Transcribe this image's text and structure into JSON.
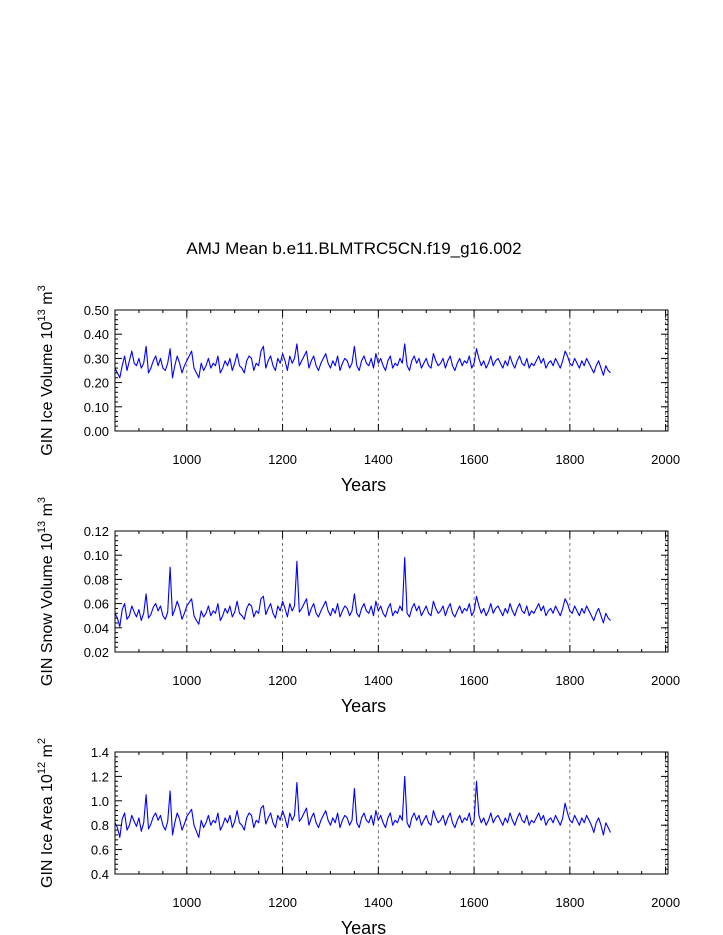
{
  "title": "AMJ Mean b.e11.BLMTRC5CN.f19_g16.002",
  "chart_data": [
    {
      "type": "line",
      "xlabel": "Years",
      "ylabel": {
        "main": "GIN Ice Volume 10",
        "exp": "13",
        "unit": " m",
        "unit_exp": "3"
      },
      "xlim": [
        850,
        2005
      ],
      "ylim": [
        0.0,
        0.5
      ],
      "xticks": [
        "1000",
        "1200",
        "1400",
        "1600",
        "1800",
        "2000"
      ],
      "yticks": [
        "0.00",
        "0.10",
        "0.20",
        "0.30",
        "0.40",
        "0.50"
      ],
      "grid_x": [
        1000,
        1200,
        1400,
        1600,
        1800,
        2000
      ],
      "series": [
        {
          "name": "GIN Ice Volume",
          "color": "#0000ff",
          "x_start": 850,
          "x_step": 5,
          "values": [
            0.26,
            0.24,
            0.22,
            0.27,
            0.31,
            0.25,
            0.29,
            0.33,
            0.28,
            0.27,
            0.3,
            0.26,
            0.28,
            0.35,
            0.24,
            0.26,
            0.29,
            0.31,
            0.27,
            0.3,
            0.26,
            0.25,
            0.28,
            0.34,
            0.22,
            0.27,
            0.31,
            0.28,
            0.24,
            0.27,
            0.29,
            0.31,
            0.33,
            0.26,
            0.24,
            0.22,
            0.28,
            0.25,
            0.27,
            0.3,
            0.26,
            0.28,
            0.27,
            0.31,
            0.24,
            0.26,
            0.29,
            0.27,
            0.3,
            0.25,
            0.28,
            0.32,
            0.27,
            0.26,
            0.24,
            0.29,
            0.31,
            0.3,
            0.25,
            0.28,
            0.27,
            0.33,
            0.35,
            0.26,
            0.29,
            0.31,
            0.27,
            0.25,
            0.3,
            0.28,
            0.32,
            0.29,
            0.25,
            0.31,
            0.28,
            0.3,
            0.36,
            0.27,
            0.29,
            0.31,
            0.33,
            0.26,
            0.29,
            0.31,
            0.27,
            0.25,
            0.28,
            0.3,
            0.32,
            0.28,
            0.26,
            0.29,
            0.27,
            0.31,
            0.25,
            0.28,
            0.3,
            0.29,
            0.26,
            0.28,
            0.35,
            0.27,
            0.25,
            0.29,
            0.31,
            0.28,
            0.27,
            0.3,
            0.26,
            0.32,
            0.28,
            0.3,
            0.27,
            0.25,
            0.29,
            0.31,
            0.26,
            0.28,
            0.27,
            0.3,
            0.28,
            0.36,
            0.27,
            0.25,
            0.29,
            0.31,
            0.28,
            0.3,
            0.26,
            0.28,
            0.3,
            0.27,
            0.26,
            0.32,
            0.29,
            0.27,
            0.28,
            0.3,
            0.26,
            0.29,
            0.31,
            0.27,
            0.25,
            0.28,
            0.3,
            0.27,
            0.29,
            0.28,
            0.31,
            0.26,
            0.28,
            0.34,
            0.3,
            0.27,
            0.29,
            0.26,
            0.28,
            0.31,
            0.27,
            0.29,
            0.3,
            0.28,
            0.26,
            0.29,
            0.27,
            0.31,
            0.28,
            0.26,
            0.29,
            0.31,
            0.28,
            0.27,
            0.3,
            0.26,
            0.28,
            0.27,
            0.29,
            0.31,
            0.28,
            0.3,
            0.26,
            0.28,
            0.29,
            0.27,
            0.3,
            0.28,
            0.26,
            0.29,
            0.33,
            0.31,
            0.28,
            0.27,
            0.3,
            0.28,
            0.26,
            0.29,
            0.27,
            0.3,
            0.28,
            0.26,
            0.24,
            0.27,
            0.29,
            0.26,
            0.23,
            0.27,
            0.25,
            0.24
          ]
        }
      ]
    },
    {
      "type": "line",
      "xlabel": "Years",
      "ylabel": {
        "main": "GIN Snow Volume 10",
        "exp": "13",
        "unit": " m",
        "unit_exp": "3"
      },
      "xlim": [
        850,
        2005
      ],
      "ylim": [
        0.02,
        0.12
      ],
      "xticks": [
        "1000",
        "1200",
        "1400",
        "1600",
        "1800",
        "2000"
      ],
      "yticks": [
        "0.02",
        "0.04",
        "0.06",
        "0.08",
        "0.10",
        "0.12"
      ],
      "grid_x": [
        1000,
        1200,
        1400,
        1600,
        1800,
        2000
      ],
      "series": [
        {
          "name": "GIN Snow Volume",
          "color": "#0000ff",
          "x_start": 850,
          "x_step": 5,
          "values": [
            0.052,
            0.048,
            0.041,
            0.055,
            0.06,
            0.047,
            0.05,
            0.058,
            0.053,
            0.049,
            0.055,
            0.046,
            0.052,
            0.068,
            0.048,
            0.051,
            0.057,
            0.06,
            0.054,
            0.058,
            0.05,
            0.047,
            0.053,
            0.09,
            0.05,
            0.055,
            0.062,
            0.056,
            0.047,
            0.052,
            0.058,
            0.061,
            0.064,
            0.05,
            0.046,
            0.043,
            0.054,
            0.049,
            0.052,
            0.058,
            0.05,
            0.054,
            0.052,
            0.06,
            0.046,
            0.05,
            0.056,
            0.052,
            0.058,
            0.049,
            0.053,
            0.062,
            0.052,
            0.05,
            0.047,
            0.056,
            0.06,
            0.058,
            0.049,
            0.054,
            0.052,
            0.064,
            0.066,
            0.051,
            0.056,
            0.06,
            0.052,
            0.048,
            0.058,
            0.054,
            0.062,
            0.056,
            0.049,
            0.06,
            0.054,
            0.058,
            0.095,
            0.053,
            0.056,
            0.06,
            0.064,
            0.05,
            0.056,
            0.06,
            0.052,
            0.049,
            0.054,
            0.058,
            0.062,
            0.054,
            0.05,
            0.056,
            0.052,
            0.06,
            0.049,
            0.054,
            0.058,
            0.056,
            0.05,
            0.054,
            0.068,
            0.052,
            0.049,
            0.056,
            0.06,
            0.054,
            0.052,
            0.058,
            0.05,
            0.062,
            0.054,
            0.058,
            0.052,
            0.049,
            0.056,
            0.06,
            0.05,
            0.054,
            0.052,
            0.058,
            0.054,
            0.098,
            0.052,
            0.049,
            0.056,
            0.06,
            0.054,
            0.058,
            0.05,
            0.054,
            0.058,
            0.052,
            0.05,
            0.062,
            0.056,
            0.052,
            0.054,
            0.058,
            0.05,
            0.056,
            0.06,
            0.052,
            0.049,
            0.054,
            0.058,
            0.052,
            0.056,
            0.054,
            0.06,
            0.05,
            0.054,
            0.066,
            0.058,
            0.052,
            0.056,
            0.05,
            0.054,
            0.06,
            0.052,
            0.056,
            0.058,
            0.054,
            0.05,
            0.056,
            0.052,
            0.06,
            0.054,
            0.05,
            0.056,
            0.06,
            0.054,
            0.052,
            0.058,
            0.05,
            0.054,
            0.052,
            0.056,
            0.06,
            0.054,
            0.058,
            0.05,
            0.054,
            0.056,
            0.052,
            0.058,
            0.054,
            0.05,
            0.056,
            0.064,
            0.06,
            0.054,
            0.052,
            0.058,
            0.054,
            0.05,
            0.056,
            0.052,
            0.058,
            0.054,
            0.05,
            0.046,
            0.052,
            0.056,
            0.05,
            0.044,
            0.052,
            0.048,
            0.046
          ]
        }
      ]
    },
    {
      "type": "line",
      "xlabel": "Years",
      "ylabel": {
        "main": "GIN Ice Area 10",
        "exp": "12",
        "unit": " m",
        "unit_exp": "2"
      },
      "xlim": [
        850,
        2005
      ],
      "ylim": [
        0.4,
        1.4
      ],
      "xticks": [
        "1000",
        "1200",
        "1400",
        "1600",
        "1800",
        "2000"
      ],
      "yticks": [
        "0.4",
        "0.6",
        "0.8",
        "1.0",
        "1.2",
        "1.4"
      ],
      "grid_x": [
        1000,
        1200,
        1400,
        1600,
        1800,
        2000
      ],
      "series": [
        {
          "name": "GIN Ice Area",
          "color": "#0000ff",
          "x_start": 850,
          "x_step": 5,
          "values": [
            0.82,
            0.78,
            0.7,
            0.85,
            0.9,
            0.76,
            0.8,
            0.88,
            0.83,
            0.79,
            0.86,
            0.75,
            0.82,
            1.05,
            0.77,
            0.81,
            0.87,
            0.9,
            0.84,
            0.88,
            0.8,
            0.76,
            0.83,
            1.08,
            0.72,
            0.82,
            0.9,
            0.85,
            0.76,
            0.81,
            0.87,
            0.9,
            0.93,
            0.8,
            0.75,
            0.7,
            0.84,
            0.78,
            0.82,
            0.88,
            0.8,
            0.84,
            0.82,
            0.9,
            0.76,
            0.8,
            0.86,
            0.82,
            0.88,
            0.78,
            0.83,
            0.92,
            0.82,
            0.8,
            0.76,
            0.86,
            0.9,
            0.88,
            0.78,
            0.84,
            0.82,
            0.94,
            0.96,
            0.81,
            0.86,
            0.9,
            0.82,
            0.78,
            0.88,
            0.84,
            0.92,
            0.86,
            0.78,
            0.9,
            0.84,
            0.88,
            1.15,
            0.83,
            0.86,
            0.9,
            0.94,
            0.8,
            0.86,
            0.9,
            0.82,
            0.78,
            0.84,
            0.88,
            0.92,
            0.84,
            0.8,
            0.86,
            0.82,
            0.9,
            0.78,
            0.84,
            0.88,
            0.86,
            0.8,
            0.84,
            1.1,
            0.82,
            0.78,
            0.86,
            0.9,
            0.84,
            0.82,
            0.88,
            0.8,
            0.92,
            0.84,
            0.88,
            0.82,
            0.78,
            0.86,
            0.9,
            0.8,
            0.84,
            0.82,
            0.88,
            0.84,
            1.2,
            0.82,
            0.78,
            0.86,
            0.9,
            0.84,
            0.88,
            0.8,
            0.84,
            0.88,
            0.82,
            0.8,
            0.92,
            0.86,
            0.82,
            0.84,
            0.88,
            0.8,
            0.86,
            0.9,
            0.82,
            0.78,
            0.84,
            0.88,
            0.82,
            0.86,
            0.84,
            0.9,
            0.8,
            0.84,
            1.16,
            0.88,
            0.82,
            0.86,
            0.8,
            0.84,
            0.9,
            0.82,
            0.86,
            0.88,
            0.84,
            0.8,
            0.86,
            0.82,
            0.9,
            0.84,
            0.8,
            0.86,
            0.9,
            0.84,
            0.82,
            0.88,
            0.8,
            0.84,
            0.82,
            0.86,
            0.9,
            0.84,
            0.88,
            0.8,
            0.84,
            0.86,
            0.82,
            0.88,
            0.84,
            0.8,
            0.86,
            0.98,
            0.9,
            0.84,
            0.82,
            0.88,
            0.84,
            0.8,
            0.86,
            0.82,
            0.88,
            0.84,
            0.8,
            0.74,
            0.82,
            0.86,
            0.8,
            0.72,
            0.82,
            0.78,
            0.74
          ]
        }
      ]
    }
  ]
}
